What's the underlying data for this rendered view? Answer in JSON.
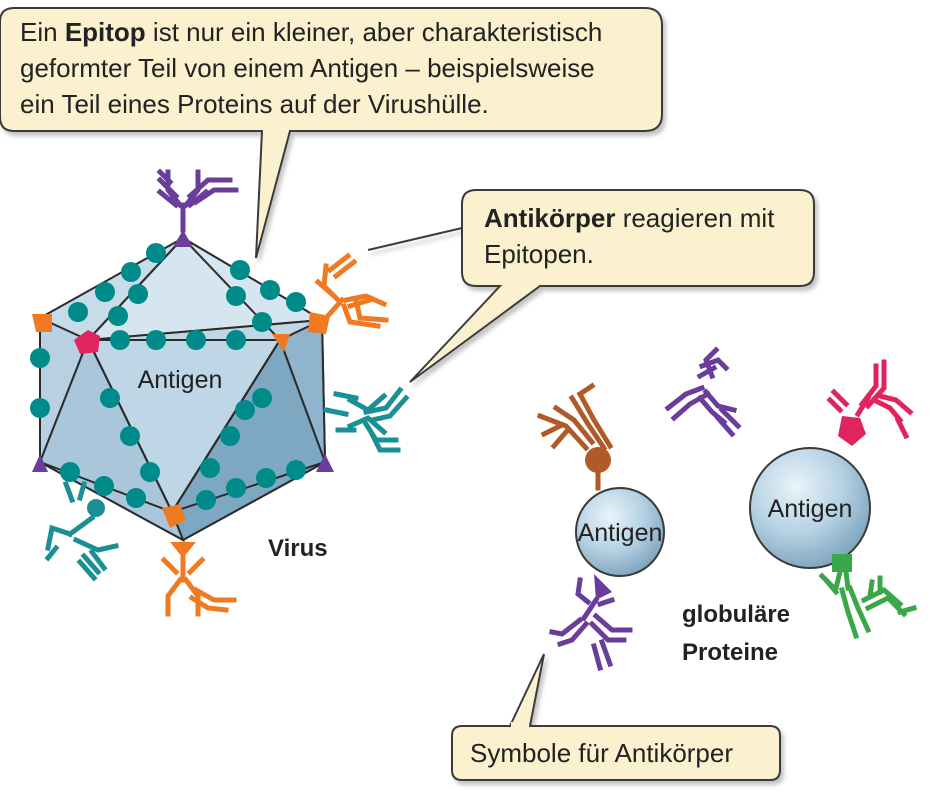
{
  "callouts": {
    "epitope": {
      "bold": "Epitop",
      "pre": "Ein ",
      "post": " ist nur ein kleiner, aber charakteristisch",
      "line2": "geformter Teil von einem Antigen – beispielsweise",
      "line3": "ein Teil eines Proteins auf der Virushülle."
    },
    "antibody": {
      "bold": "Antikörper",
      "post": " reagieren mit",
      "line2": "Epitopen."
    },
    "symbols": "Symbole für Antikörper"
  },
  "labels": {
    "virus_antigen": "Antigen",
    "virus": "Virus",
    "protein1_antigen": "Antigen",
    "protein2_antigen": "Antigen",
    "globular_line1": "globuläre",
    "globular_line2": "Proteine"
  },
  "colors": {
    "callout_fill": "#fbf1cf",
    "callout_stroke": "#3a3a3a",
    "virus_face_light": "#cfe0ee",
    "virus_face_mid": "#b3cde0",
    "virus_face_dark": "#7fa8c4",
    "dot_teal": "#008b8b",
    "purple": "#6a3d9a",
    "orange": "#f07a22",
    "teal": "#1a8f95",
    "brown": "#b05a2a",
    "red": "#e0245e",
    "green": "#3aa84a",
    "sphere": "#b9d5e6"
  }
}
